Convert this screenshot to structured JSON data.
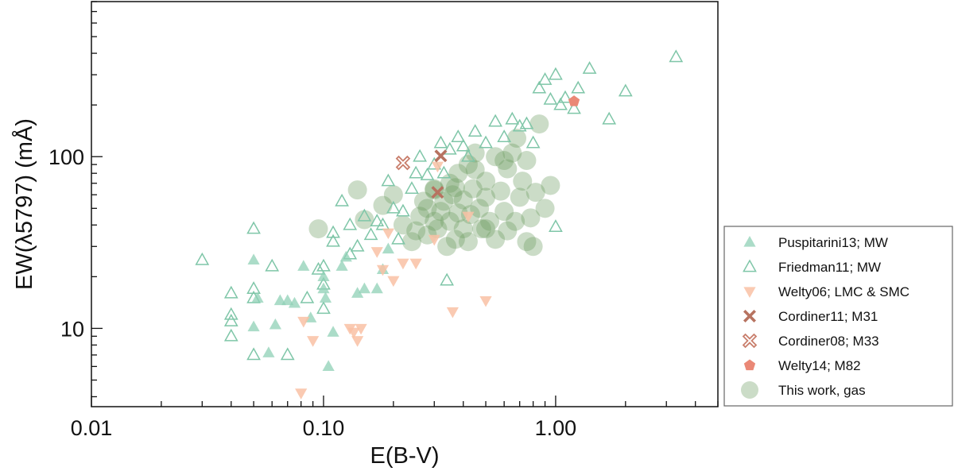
{
  "chart_data": {
    "type": "scatter",
    "xlabel": "E(B-V)",
    "ylabel": "EW(λ5797) (mÅ)",
    "xscale": "log",
    "yscale": "log",
    "xlim": [
      0.01,
      5
    ],
    "ylim": [
      3.5,
      800
    ],
    "xticks": [
      {
        "value": 0.01,
        "label": "0.01"
      },
      {
        "value": 0.1,
        "label": "0.10"
      },
      {
        "value": 1,
        "label": "1.00"
      }
    ],
    "yticks": [
      {
        "value": 10,
        "label": "10"
      },
      {
        "value": 100,
        "label": "100"
      }
    ],
    "grid": false,
    "legend_position": "outside-right",
    "series": [
      {
        "name": "Puspitarini13; MW",
        "marker": "triangle-up-filled",
        "color": "#8fd0b5",
        "points": [
          [
            0.05,
            25
          ],
          [
            0.05,
            10.2
          ],
          [
            0.052,
            15
          ],
          [
            0.058,
            7.2
          ],
          [
            0.062,
            10.5
          ],
          [
            0.065,
            14.5
          ],
          [
            0.07,
            14.5
          ],
          [
            0.075,
            14
          ],
          [
            0.082,
            23
          ],
          [
            0.088,
            11.5
          ],
          [
            0.1,
            17
          ],
          [
            0.1,
            20
          ],
          [
            0.102,
            15
          ],
          [
            0.105,
            6
          ],
          [
            0.11,
            9.5
          ],
          [
            0.12,
            23
          ],
          [
            0.125,
            26
          ],
          [
            0.14,
            16
          ],
          [
            0.15,
            17
          ],
          [
            0.17,
            17
          ],
          [
            0.18,
            22
          ],
          [
            0.19,
            29
          ]
        ]
      },
      {
        "name": "Friedman11; MW",
        "marker": "triangle-up-open",
        "color": "#7fc6a8",
        "points": [
          [
            0.03,
            25
          ],
          [
            0.04,
            16
          ],
          [
            0.04,
            12
          ],
          [
            0.04,
            11
          ],
          [
            0.04,
            9
          ],
          [
            0.05,
            38
          ],
          [
            0.05,
            17
          ],
          [
            0.05,
            15
          ],
          [
            0.05,
            7
          ],
          [
            0.06,
            23
          ],
          [
            0.07,
            7
          ],
          [
            0.085,
            15
          ],
          [
            0.095,
            22
          ],
          [
            0.1,
            23
          ],
          [
            0.1,
            18
          ],
          [
            0.1,
            13
          ],
          [
            0.11,
            32
          ],
          [
            0.11,
            36
          ],
          [
            0.12,
            55
          ],
          [
            0.13,
            40
          ],
          [
            0.13,
            27
          ],
          [
            0.14,
            30
          ],
          [
            0.15,
            45
          ],
          [
            0.16,
            35
          ],
          [
            0.17,
            42
          ],
          [
            0.18,
            40
          ],
          [
            0.19,
            72
          ],
          [
            0.2,
            50
          ],
          [
            0.21,
            33
          ],
          [
            0.22,
            48
          ],
          [
            0.24,
            65
          ],
          [
            0.25,
            80
          ],
          [
            0.26,
            100
          ],
          [
            0.28,
            78
          ],
          [
            0.3,
            90
          ],
          [
            0.32,
            120
          ],
          [
            0.33,
            80
          ],
          [
            0.35,
            110
          ],
          [
            0.38,
            130
          ],
          [
            0.4,
            115
          ],
          [
            0.42,
            100
          ],
          [
            0.45,
            140
          ],
          [
            0.5,
            120
          ],
          [
            0.55,
            160
          ],
          [
            0.6,
            130
          ],
          [
            0.65,
            165
          ],
          [
            0.7,
            150
          ],
          [
            0.75,
            155
          ],
          [
            0.8,
            120
          ],
          [
            0.85,
            250
          ],
          [
            0.9,
            280
          ],
          [
            0.95,
            215
          ],
          [
            1.0,
            300
          ],
          [
            1.0,
            39
          ],
          [
            1.05,
            200
          ],
          [
            1.1,
            220
          ],
          [
            1.2,
            190
          ],
          [
            1.25,
            250
          ],
          [
            1.4,
            325
          ],
          [
            1.7,
            165
          ],
          [
            2.0,
            240
          ],
          [
            3.3,
            380
          ],
          [
            0.34,
            19
          ]
        ]
      },
      {
        "name": "Welty06; LMC & SMC",
        "marker": "triangle-down-filled",
        "color": "#f9c1a5",
        "points": [
          [
            0.08,
            4.2
          ],
          [
            0.082,
            11
          ],
          [
            0.09,
            8.5
          ],
          [
            0.13,
            10
          ],
          [
            0.135,
            9.5
          ],
          [
            0.14,
            8.5
          ],
          [
            0.145,
            10
          ],
          [
            0.17,
            28
          ],
          [
            0.18,
            22
          ],
          [
            0.19,
            36
          ],
          [
            0.2,
            19
          ],
          [
            0.22,
            24
          ],
          [
            0.25,
            24
          ],
          [
            0.3,
            33
          ],
          [
            0.31,
            88
          ],
          [
            0.36,
            12.5
          ],
          [
            0.42,
            45
          ],
          [
            0.5,
            14.5
          ]
        ]
      },
      {
        "name": "Cordiner11; M31",
        "marker": "x-filled",
        "color": "#b77360",
        "points": [
          [
            0.32,
            101
          ],
          [
            0.31,
            62
          ]
        ]
      },
      {
        "name": "Cordiner08; M33",
        "marker": "x-open",
        "color": "#c97f6d",
        "points": [
          [
            0.22,
            92
          ]
        ]
      },
      {
        "name": "Welty14; M82",
        "marker": "pentagon-filled",
        "color": "#ea8876",
        "points": [
          [
            1.2,
            210
          ]
        ]
      },
      {
        "name": "This work, gas",
        "marker": "circle-filled",
        "color": "#6b9a5e",
        "points": [
          [
            0.095,
            38
          ],
          [
            0.14,
            64
          ],
          [
            0.15,
            43
          ],
          [
            0.18,
            52
          ],
          [
            0.2,
            60
          ],
          [
            0.22,
            40
          ],
          [
            0.24,
            32
          ],
          [
            0.25,
            37
          ],
          [
            0.26,
            45
          ],
          [
            0.27,
            55
          ],
          [
            0.28,
            35
          ],
          [
            0.28,
            50
          ],
          [
            0.3,
            42
          ],
          [
            0.3,
            65
          ],
          [
            0.31,
            38
          ],
          [
            0.32,
            48
          ],
          [
            0.33,
            55
          ],
          [
            0.34,
            30
          ],
          [
            0.35,
            42
          ],
          [
            0.36,
            60
          ],
          [
            0.37,
            33
          ],
          [
            0.38,
            47
          ],
          [
            0.38,
            80
          ],
          [
            0.4,
            38
          ],
          [
            0.4,
            56
          ],
          [
            0.42,
            32
          ],
          [
            0.43,
            46
          ],
          [
            0.44,
            65
          ],
          [
            0.45,
            105
          ],
          [
            0.47,
            50
          ],
          [
            0.48,
            38
          ],
          [
            0.5,
            58
          ],
          [
            0.5,
            72
          ],
          [
            0.52,
            42
          ],
          [
            0.55,
            100
          ],
          [
            0.55,
            33
          ],
          [
            0.58,
            63
          ],
          [
            0.6,
            48
          ],
          [
            0.62,
            37
          ],
          [
            0.62,
            85
          ],
          [
            0.65,
            105
          ],
          [
            0.67,
            42
          ],
          [
            0.7,
            58
          ],
          [
            0.72,
            72
          ],
          [
            0.75,
            32
          ],
          [
            0.75,
            95
          ],
          [
            0.78,
            44
          ],
          [
            0.8,
            30
          ],
          [
            0.82,
            62
          ],
          [
            0.85,
            155
          ],
          [
            0.9,
            50
          ],
          [
            0.95,
            68
          ],
          [
            0.5,
            38
          ],
          [
            0.45,
            84
          ],
          [
            0.35,
            70
          ],
          [
            0.42,
            90
          ],
          [
            0.6,
            95
          ],
          [
            0.68,
            128
          ],
          [
            0.3,
            64
          ],
          [
            0.37,
            66
          ]
        ]
      }
    ]
  }
}
